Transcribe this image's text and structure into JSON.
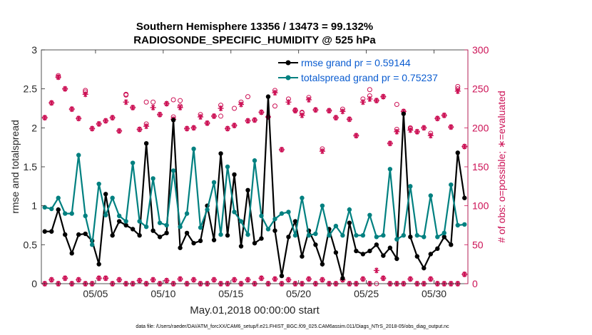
{
  "chart_data": {
    "type": "line",
    "title_line1": "Southern Hemisphere 13356 / 13473 = 99.132%",
    "title_line2": "RADIOSONDE_SPECIFIC_HUMIDITY @ 525 hPa",
    "xlabel": "May.01,2018 00:00:00 start",
    "ylabel_left": "rmse and totalspread",
    "ylabel_right": "# of obs: o=possible; ∗=evaluated",
    "footer": "data file: /Users/raeder/DAI/ATM_forcXX/CAM6_setup/f.e21.FHIST_BGC.f09_025.CAM6assim.011/Diags_NTrS_2018-05/obs_diag_output.nc",
    "x_range": [
      1,
      32.5
    ],
    "ylim_left": [
      0,
      3
    ],
    "ylim_right": [
      0,
      300
    ],
    "xticks": [
      5,
      10,
      15,
      20,
      25,
      30
    ],
    "xtick_labels": [
      "05/05",
      "05/10",
      "05/15",
      "05/20",
      "05/25",
      "05/30"
    ],
    "yticks_left": [
      0,
      0.5,
      1,
      1.5,
      2,
      2.5,
      3
    ],
    "ytick_labels_left": [
      "0",
      "0.5",
      "1",
      "1.5",
      "2",
      "2.5",
      "3"
    ],
    "yticks_right": [
      0,
      50,
      100,
      150,
      200,
      250,
      300
    ],
    "ytick_labels_right": [
      "0",
      "50",
      "100",
      "150",
      "200",
      "250",
      "300"
    ],
    "colors": {
      "rmse": "#000000",
      "spread": "#008080",
      "obs": "#cc1155",
      "legend_text": "#0a5cd0"
    },
    "series": [
      {
        "name": "rmse",
        "legend": "rmse grand pr = 0.59144",
        "x": [
          1.25,
          1.75,
          2.25,
          2.75,
          3.25,
          3.75,
          4.25,
          4.75,
          5.25,
          5.75,
          6.25,
          6.75,
          7.25,
          7.75,
          8.25,
          8.75,
          9.25,
          9.75,
          10.25,
          10.75,
          11.25,
          11.75,
          12.25,
          12.75,
          13.25,
          13.75,
          14.25,
          14.75,
          15.25,
          15.75,
          16.25,
          16.75,
          17.25,
          17.75,
          18.25,
          18.75,
          19.25,
          19.75,
          20.25,
          20.75,
          21.25,
          21.75,
          22.25,
          22.75,
          23.25,
          23.75,
          24.25,
          24.75,
          25.25,
          25.75,
          26.25,
          26.75,
          27.25,
          27.75,
          28.25,
          28.75,
          29.25,
          29.75,
          30.25,
          30.75,
          31.25,
          31.75,
          32.25
        ],
        "values": [
          0.67,
          0.67,
          0.95,
          0.63,
          0.39,
          0.63,
          0.64,
          0.55,
          0.25,
          1.15,
          0.62,
          0.8,
          0.75,
          0.7,
          0.62,
          1.8,
          0.68,
          0.6,
          0.65,
          2.1,
          0.46,
          0.65,
          0.52,
          0.55,
          1.0,
          0.56,
          1.67,
          0.62,
          1.4,
          0.48,
          1.2,
          0.52,
          0.58,
          2.4,
          0.68,
          0.1,
          0.6,
          0.8,
          0.35,
          0.68,
          0.5,
          0.25,
          0.7,
          0.4,
          0.07,
          0.78,
          0.42,
          0.38,
          0.42,
          0.5,
          0.36,
          0.46,
          0.32,
          2.18,
          0.6,
          0.35,
          0.2,
          0.38,
          0.45,
          0.6,
          0.5,
          1.68,
          1.1
        ]
      },
      {
        "name": "totalspread",
        "legend": "totalspread grand pr = 0.75237",
        "x": [
          1.25,
          1.75,
          2.25,
          2.75,
          3.25,
          3.75,
          4.25,
          4.75,
          5.25,
          5.75,
          6.25,
          6.75,
          7.25,
          7.75,
          8.25,
          8.75,
          9.25,
          9.75,
          10.25,
          10.75,
          11.25,
          11.75,
          12.25,
          12.75,
          13.25,
          13.75,
          14.25,
          14.75,
          15.25,
          15.75,
          16.25,
          16.75,
          17.25,
          17.75,
          18.25,
          18.75,
          19.25,
          19.75,
          20.25,
          20.75,
          21.25,
          21.75,
          22.25,
          22.75,
          23.25,
          23.75,
          24.25,
          24.75,
          25.25,
          25.75,
          26.25,
          26.75,
          27.25,
          27.75,
          28.25,
          28.75,
          29.25,
          29.75,
          30.25,
          30.75,
          31.25,
          31.75,
          32.25
        ],
        "values": [
          0.98,
          0.96,
          1.1,
          0.9,
          0.9,
          1.65,
          0.87,
          0.5,
          1.28,
          0.88,
          1.1,
          0.87,
          0.8,
          1.55,
          0.8,
          0.73,
          1.35,
          0.78,
          0.75,
          1.45,
          0.73,
          0.9,
          1.73,
          0.72,
          0.95,
          1.3,
          0.63,
          1.5,
          0.92,
          0.8,
          0.63,
          1.58,
          0.87,
          0.7,
          0.83,
          0.9,
          0.92,
          0.62,
          1.1,
          0.62,
          0.64,
          1.0,
          0.62,
          0.74,
          0.62,
          0.95,
          0.62,
          0.62,
          0.88,
          0.6,
          0.62,
          1.47,
          0.57,
          0.62,
          1.25,
          0.62,
          0.6,
          1.13,
          0.6,
          0.65,
          1.27,
          0.75,
          0.76
        ]
      }
    ],
    "obs_possible": {
      "x": [
        1.25,
        1.75,
        2.25,
        2.75,
        3.25,
        3.75,
        4.25,
        4.75,
        5.25,
        5.75,
        6.25,
        6.75,
        7.25,
        7.75,
        8.25,
        8.75,
        9.25,
        9.75,
        10.25,
        10.75,
        11.25,
        11.75,
        12.25,
        12.75,
        13.25,
        13.75,
        14.25,
        14.75,
        15.25,
        15.75,
        16.25,
        16.75,
        17.25,
        17.75,
        18.25,
        18.75,
        19.25,
        19.75,
        20.25,
        20.75,
        21.25,
        21.75,
        22.25,
        22.75,
        23.25,
        23.75,
        24.25,
        24.75,
        25.25,
        25.75,
        26.25,
        26.75,
        27.25,
        27.75,
        28.25,
        28.75,
        29.25,
        29.75,
        30.25,
        30.75,
        31.25,
        31.75,
        32.25
      ],
      "values": [
        213,
        232,
        265,
        250,
        224,
        212,
        246,
        199,
        205,
        209,
        213,
        196,
        243,
        226,
        198,
        205,
        233,
        217,
        231,
        214,
        228,
        199,
        200,
        217,
        206,
        215,
        229,
        199,
        203,
        233,
        209,
        210,
        220,
        214,
        248,
        172,
        237,
        222,
        219,
        239,
        223,
        173,
        222,
        213,
        224,
        211,
        190,
        237,
        241,
        235,
        240,
        180,
        198,
        221,
        200,
        195,
        200,
        193,
        212,
        216,
        201,
        250,
        176
      ],
      "upper": [
        null,
        null,
        267,
        null,
        null,
        null,
        248,
        null,
        null,
        null,
        null,
        null,
        242,
        null,
        null,
        null,
        null,
        null,
        null,
        null,
        235,
        null,
        null,
        null,
        null,
        null,
        null,
        null,
        null,
        null,
        null,
        null,
        null,
        null,
        null,
        null,
        null,
        null,
        null,
        null,
        null,
        null,
        null,
        null,
        null,
        null,
        null,
        null,
        null,
        null,
        null,
        null,
        null,
        null,
        null,
        null,
        null,
        null,
        null,
        null,
        null,
        253,
        null
      ],
      "extra": [
        [
          7.25,
          243
        ],
        [
          8.75,
          233
        ],
        [
          10.75,
          236
        ],
        [
          14.25,
          215
        ],
        [
          15.25,
          225
        ],
        [
          16.25,
          240
        ],
        [
          18.25,
          228
        ],
        [
          19.75,
          223
        ],
        [
          20.25,
          220
        ],
        [
          22.25,
          222
        ],
        [
          25.25,
          249
        ],
        [
          27.25,
          230
        ],
        [
          28.25,
          199
        ]
      ]
    },
    "obs_evaluated": {
      "x": [
        1.25,
        1.75,
        2.25,
        2.75,
        3.25,
        3.75,
        4.25,
        4.75,
        5.25,
        5.75,
        6.25,
        6.75,
        7.25,
        7.75,
        8.25,
        8.75,
        9.25,
        9.75,
        10.25,
        10.75,
        11.25,
        11.75,
        12.25,
        12.75,
        13.25,
        13.75,
        14.25,
        14.75,
        15.25,
        15.75,
        16.25,
        16.75,
        17.25,
        17.75,
        18.25,
        18.75,
        19.25,
        19.75,
        20.25,
        20.75,
        21.25,
        21.75,
        22.25,
        22.75,
        23.25,
        23.75,
        24.25,
        24.75,
        25.25,
        25.75,
        26.25,
        26.75,
        27.25,
        27.75,
        28.25,
        28.75,
        29.25,
        29.75,
        30.25,
        30.75,
        31.25,
        31.75,
        32.25
      ],
      "values": [
        213,
        232,
        265,
        250,
        224,
        212,
        243,
        199,
        205,
        209,
        213,
        196,
        233,
        226,
        198,
        202,
        226,
        217,
        231,
        211,
        226,
        199,
        200,
        214,
        206,
        215,
        225,
        199,
        203,
        230,
        209,
        210,
        220,
        214,
        245,
        172,
        233,
        222,
        216,
        236,
        223,
        170,
        222,
        213,
        221,
        211,
        190,
        233,
        237,
        235,
        240,
        180,
        195,
        221,
        197,
        195,
        200,
        190,
        212,
        216,
        201,
        247,
        176
      ]
    },
    "obs_bottom_possible": [
      0,
      5,
      0,
      7,
      0,
      5,
      0,
      0,
      7,
      7,
      0,
      5,
      0,
      0,
      4,
      0,
      5,
      0,
      4,
      0,
      6,
      0,
      5,
      0,
      0,
      5,
      0,
      0,
      5,
      0,
      5,
      0,
      7,
      0,
      6,
      0,
      5,
      0,
      0,
      6,
      0,
      5,
      0,
      0,
      5,
      0,
      0,
      6,
      0,
      0,
      7,
      0,
      0,
      0,
      6,
      0,
      0,
      6,
      0,
      0,
      0,
      0,
      12
    ],
    "obs_bottom_evaluated": [
      0,
      5,
      0,
      7,
      0,
      5,
      0,
      0,
      7,
      7,
      0,
      5,
      0,
      0,
      4,
      0,
      5,
      0,
      4,
      0,
      6,
      0,
      5,
      0,
      0,
      5,
      0,
      0,
      5,
      0,
      5,
      0,
      7,
      0,
      6,
      0,
      5,
      0,
      0,
      6,
      0,
      5,
      0,
      0,
      5,
      0,
      0,
      6,
      0,
      17,
      7,
      0,
      0,
      0,
      6,
      0,
      0,
      6,
      0,
      0,
      0,
      0,
      12
    ]
  }
}
